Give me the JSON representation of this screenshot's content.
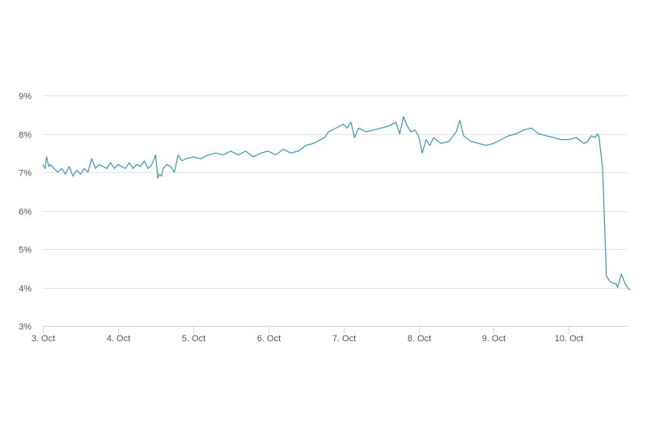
{
  "chart_data": {
    "type": "line",
    "title": "",
    "xlabel": "",
    "ylabel": "",
    "ylim": [
      3,
      9
    ],
    "y_ticks": [
      3,
      4,
      5,
      6,
      7,
      8,
      9
    ],
    "y_tick_labels": [
      "3%",
      "4%",
      "5%",
      "6%",
      "7%",
      "8%",
      "9%"
    ],
    "xlim": [
      0,
      7.82
    ],
    "x_ticks": [
      0,
      1,
      2,
      3,
      4,
      5,
      6,
      7
    ],
    "x_tick_labels": [
      "3. Oct",
      "4. Oct",
      "5. Oct",
      "6. Oct",
      "7. Oct",
      "8. Oct",
      "9. Oct",
      "10. Oct"
    ],
    "x_unit": "days since 3. Oct",
    "grid": true,
    "legend": "none",
    "line_color": "#4a9cb6",
    "grid_color": "#e6e6e6",
    "axis_color": "#ccd6eb",
    "series": [
      {
        "x": [
          0.0,
          0.03,
          0.05,
          0.08,
          0.1,
          0.15,
          0.2,
          0.25,
          0.3,
          0.35,
          0.4,
          0.45,
          0.5,
          0.55,
          0.6,
          0.65,
          0.7,
          0.75,
          0.8,
          0.85,
          0.9,
          0.95,
          1.0,
          1.05,
          1.1,
          1.15,
          1.2,
          1.25,
          1.3,
          1.35,
          1.4,
          1.45,
          1.5,
          1.53,
          1.55,
          1.58,
          1.6,
          1.65,
          1.7,
          1.75,
          1.8,
          1.85,
          1.9,
          2.0,
          2.1,
          2.2,
          2.3,
          2.4,
          2.5,
          2.6,
          2.7,
          2.8,
          2.9,
          3.0,
          3.1,
          3.2,
          3.3,
          3.4,
          3.5,
          3.6,
          3.7,
          3.75,
          3.8,
          3.9,
          4.0,
          4.05,
          4.1,
          4.15,
          4.2,
          4.3,
          4.4,
          4.5,
          4.6,
          4.7,
          4.75,
          4.8,
          4.85,
          4.9,
          4.95,
          5.0,
          5.05,
          5.1,
          5.15,
          5.2,
          5.3,
          5.4,
          5.5,
          5.55,
          5.6,
          5.7,
          5.8,
          5.9,
          6.0,
          6.1,
          6.2,
          6.3,
          6.4,
          6.5,
          6.6,
          6.7,
          6.8,
          6.9,
          7.0,
          7.1,
          7.2,
          7.25,
          7.3,
          7.35,
          7.38,
          7.4,
          7.45,
          7.5,
          7.55,
          7.6,
          7.63,
          7.65,
          7.7,
          7.75,
          7.8,
          7.82
        ],
        "y": [
          7.2,
          7.1,
          7.4,
          7.15,
          7.2,
          7.1,
          7.0,
          7.1,
          6.95,
          7.15,
          6.9,
          7.05,
          6.95,
          7.1,
          7.0,
          7.35,
          7.1,
          7.2,
          7.15,
          7.1,
          7.25,
          7.1,
          7.2,
          7.15,
          7.1,
          7.25,
          7.1,
          7.2,
          7.15,
          7.3,
          7.1,
          7.2,
          7.45,
          6.85,
          6.95,
          6.9,
          7.1,
          7.2,
          7.15,
          7.0,
          7.45,
          7.3,
          7.35,
          7.4,
          7.35,
          7.45,
          7.5,
          7.45,
          7.55,
          7.45,
          7.55,
          7.4,
          7.5,
          7.55,
          7.45,
          7.6,
          7.5,
          7.55,
          7.7,
          7.75,
          7.85,
          7.9,
          8.05,
          8.15,
          8.25,
          8.15,
          8.3,
          7.9,
          8.15,
          8.05,
          8.1,
          8.15,
          8.2,
          8.3,
          8.0,
          8.45,
          8.2,
          8.05,
          8.1,
          7.95,
          7.5,
          7.85,
          7.7,
          7.9,
          7.75,
          7.8,
          8.05,
          8.35,
          7.95,
          7.8,
          7.75,
          7.7,
          7.75,
          7.85,
          7.95,
          8.0,
          8.1,
          8.15,
          8.0,
          7.95,
          7.9,
          7.85,
          7.85,
          7.9,
          7.75,
          7.8,
          7.95,
          7.9,
          8.0,
          7.95,
          7.1,
          4.3,
          4.15,
          4.1,
          4.1,
          4.0,
          4.35,
          4.1,
          3.95,
          3.95
        ]
      }
    ]
  }
}
